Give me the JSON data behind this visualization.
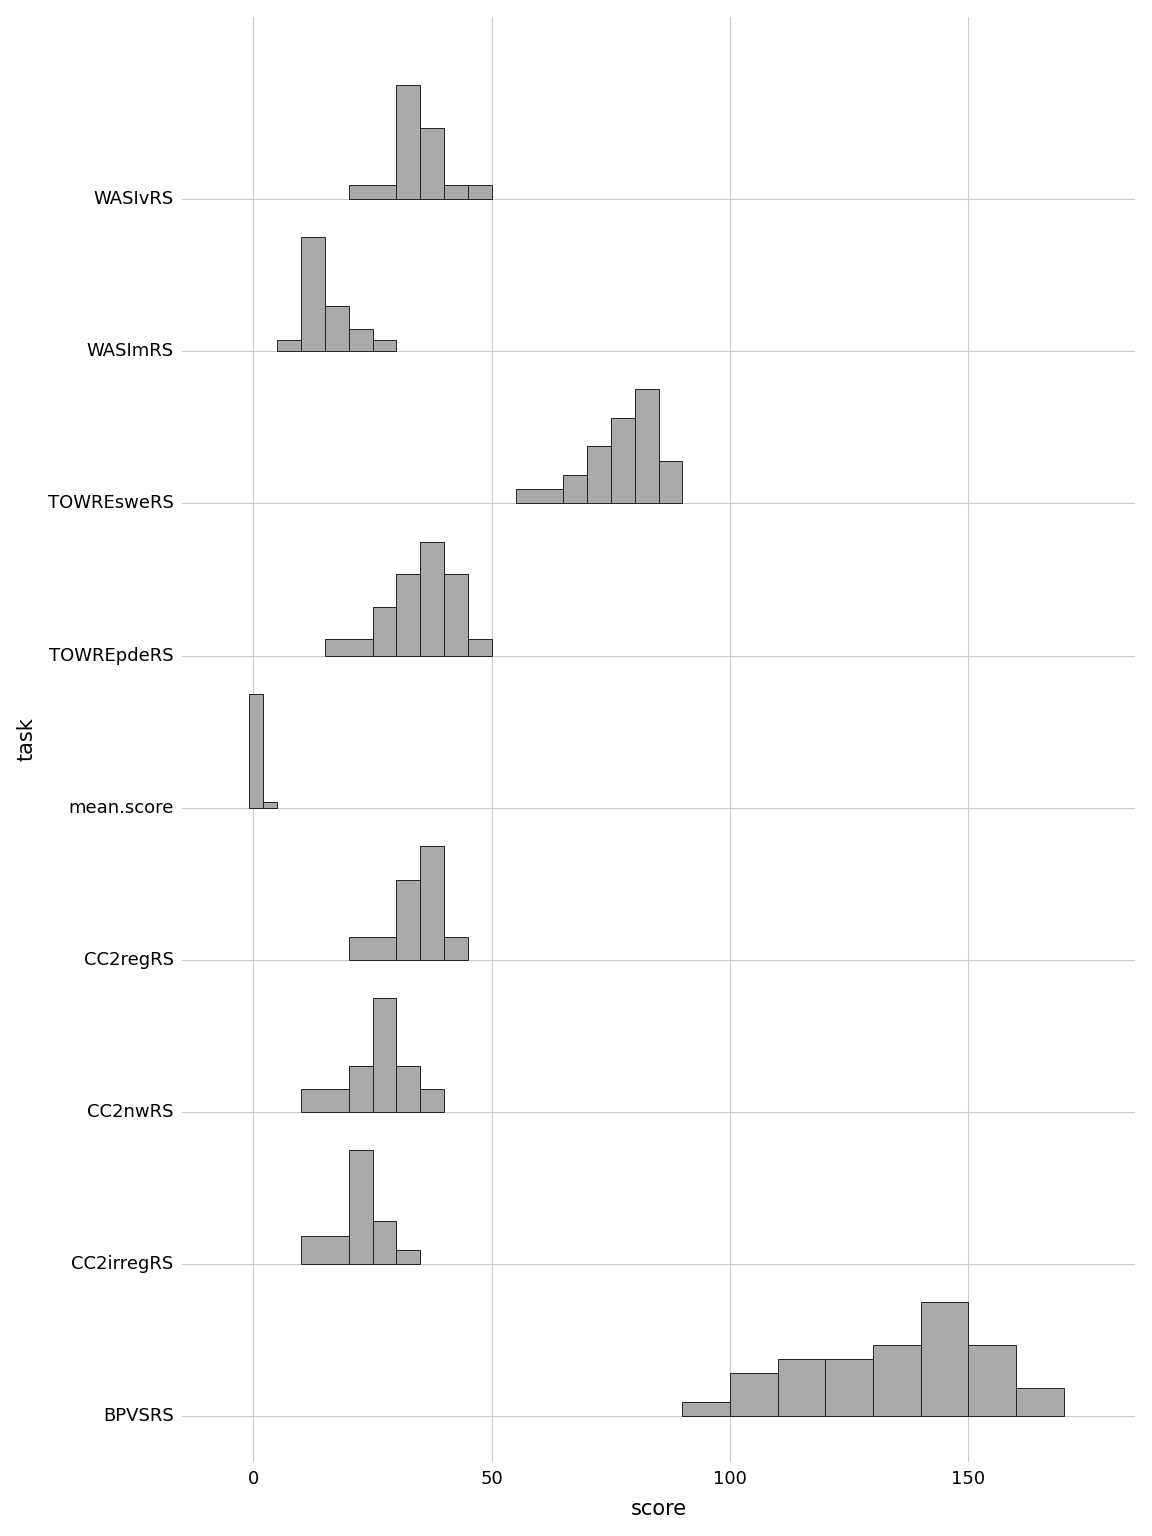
{
  "tasks": [
    "WASIvRS",
    "WASImRS",
    "TOWREsweRS",
    "TOWREpdeRS",
    "mean.score",
    "CC2regRS",
    "CC2nwRS",
    "CC2irregRS",
    "BPVSRS"
  ],
  "xlim": [
    -15,
    185
  ],
  "xticks": [
    0,
    50,
    100,
    150
  ],
  "xlabel": "score",
  "ylabel": "task",
  "bar_color": "#aaaaaa",
  "bar_edgecolor": "#222222",
  "background_color": "#ffffff",
  "grid_color": "#cccccc",
  "histograms": {
    "WASIvRS": {
      "bins": [
        20,
        30,
        35,
        40,
        45,
        50
      ],
      "counts": [
        1,
        8,
        5,
        1,
        1
      ],
      "max_count": 8
    },
    "WASImRS": {
      "bins": [
        5,
        10,
        15,
        20,
        25,
        30
      ],
      "counts": [
        1,
        10,
        4,
        2,
        1
      ],
      "max_count": 10
    },
    "TOWREsweRS": {
      "bins": [
        55,
        65,
        70,
        75,
        80,
        85,
        90
      ],
      "counts": [
        1,
        2,
        4,
        6,
        8,
        3
      ],
      "max_count": 8
    },
    "TOWREpdeRS": {
      "bins": [
        15,
        25,
        30,
        35,
        40,
        45,
        50
      ],
      "counts": [
        1,
        3,
        5,
        7,
        5,
        1
      ],
      "max_count": 7
    },
    "mean.score": {
      "bins": [
        -1,
        2,
        5,
        8
      ],
      "counts": [
        20,
        1,
        0
      ],
      "max_count": 20
    },
    "CC2regRS": {
      "bins": [
        20,
        30,
        35,
        40,
        45
      ],
      "counts": [
        2,
        7,
        10,
        2
      ],
      "max_count": 10
    },
    "CC2nwRS": {
      "bins": [
        10,
        20,
        25,
        30,
        35,
        40
      ],
      "counts": [
        2,
        4,
        10,
        4,
        2
      ],
      "max_count": 10
    },
    "CC2irregRS": {
      "bins": [
        10,
        20,
        25,
        30,
        35
      ],
      "counts": [
        2,
        8,
        3,
        1
      ],
      "max_count": 8
    },
    "BPVSRS": {
      "bins": [
        90,
        100,
        110,
        120,
        130,
        140,
        150,
        160,
        170
      ],
      "counts": [
        1,
        3,
        4,
        4,
        5,
        8,
        5,
        2
      ],
      "max_count": 8
    }
  }
}
